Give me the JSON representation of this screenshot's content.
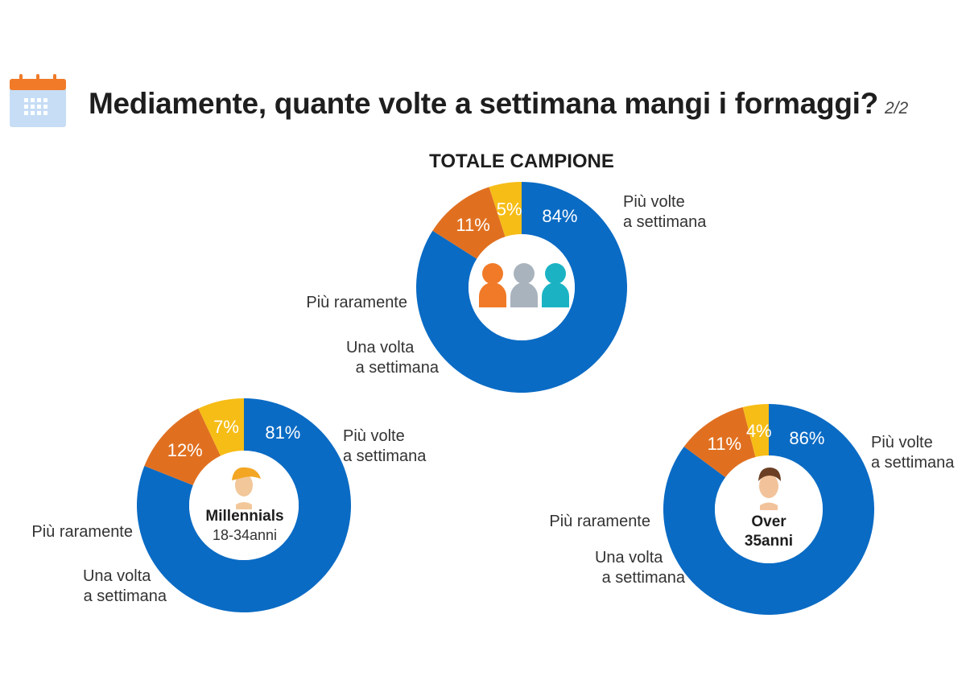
{
  "header": {
    "title": "Mediamente, quante volte a settimana mangi i formaggi?",
    "page": "2/2",
    "icon": "calendar-icon"
  },
  "colors": {
    "more_times": "#0a6bc4",
    "once": "#e07020",
    "rarely": "#f6bd16"
  },
  "chart_data": [
    {
      "type": "pie",
      "title": "TOTALE CAMPIONE",
      "center_icon": "people-group-icon",
      "slices": [
        {
          "label": "Più volte a settimana",
          "label_lines": [
            "Più volte",
            "a settimana"
          ],
          "value": 84,
          "display": "84%"
        },
        {
          "label": "Una volta a settimana",
          "label_lines": [
            "Una volta",
            "a settimana"
          ],
          "value": 11,
          "display": "11%"
        },
        {
          "label": "Più raramente",
          "label_lines": [
            "Più raramente"
          ],
          "value": 5,
          "display": "5%"
        }
      ]
    },
    {
      "type": "pie",
      "title": "Millennials",
      "subtitle": "18-34anni",
      "center_icon": "young-person-icon",
      "slices": [
        {
          "label": "Più volte a settimana",
          "label_lines": [
            "Più volte",
            "a settimana"
          ],
          "value": 81,
          "display": "81%"
        },
        {
          "label": "Una volta a settimana",
          "label_lines": [
            "Una volta",
            "a settimana"
          ],
          "value": 12,
          "display": "12%"
        },
        {
          "label": "Più raramente",
          "label_lines": [
            "Più raramente"
          ],
          "value": 7,
          "display": "7%"
        }
      ]
    },
    {
      "type": "pie",
      "title": "Over",
      "subtitle": "35anni",
      "center_icon": "adult-person-icon",
      "slices": [
        {
          "label": "Più volte a settimana",
          "label_lines": [
            "Più volte",
            "a settimana"
          ],
          "value": 86,
          "display": "86%"
        },
        {
          "label": "Una volta a settimana",
          "label_lines": [
            "Una volta",
            "a settimana"
          ],
          "value": 11,
          "display": "11%"
        },
        {
          "label": "Più raramente",
          "label_lines": [
            "Più raramente"
          ],
          "value": 4,
          "display": "4%"
        }
      ]
    }
  ]
}
